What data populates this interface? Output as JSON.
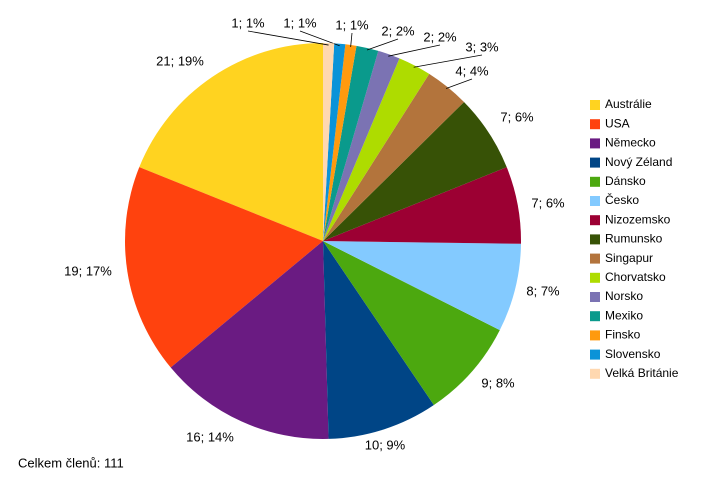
{
  "chart_data": {
    "type": "pie",
    "categories": [
      "Austrálie",
      "USA",
      "Německo",
      "Nový Zéland",
      "Dánsko",
      "Česko",
      "Nizozemsko",
      "Rumunsko",
      "Singapur",
      "Chorvatsko",
      "Norsko",
      "Mexiko",
      "Finsko",
      "Slovensko",
      "Velká Británie"
    ],
    "values": [
      21,
      19,
      16,
      10,
      9,
      8,
      7,
      7,
      4,
      3,
      2,
      2,
      1,
      1,
      1
    ],
    "value_labels": [
      "21; 19%",
      "19; 17%",
      "16; 14%",
      "10; 9%",
      "9; 8%",
      "8; 7%",
      "7; 6%",
      "7; 6%",
      "4; 4%",
      "3; 3%",
      "2; 2%",
      "2; 2%",
      "1; 1%",
      "1; 1%",
      "1; 1%"
    ],
    "colors": [
      "#ffd320",
      "#ff420e",
      "#6a1b82",
      "#004586",
      "#4ca80f",
      "#83caff",
      "#9c0033",
      "#375206",
      "#b3743c",
      "#aedc00",
      "#7b73b3",
      "#0a9a8c",
      "#ff9a0e",
      "#0a93d8",
      "#ffd8b0"
    ],
    "legend": "right",
    "note": "Celkem členů: 111"
  }
}
